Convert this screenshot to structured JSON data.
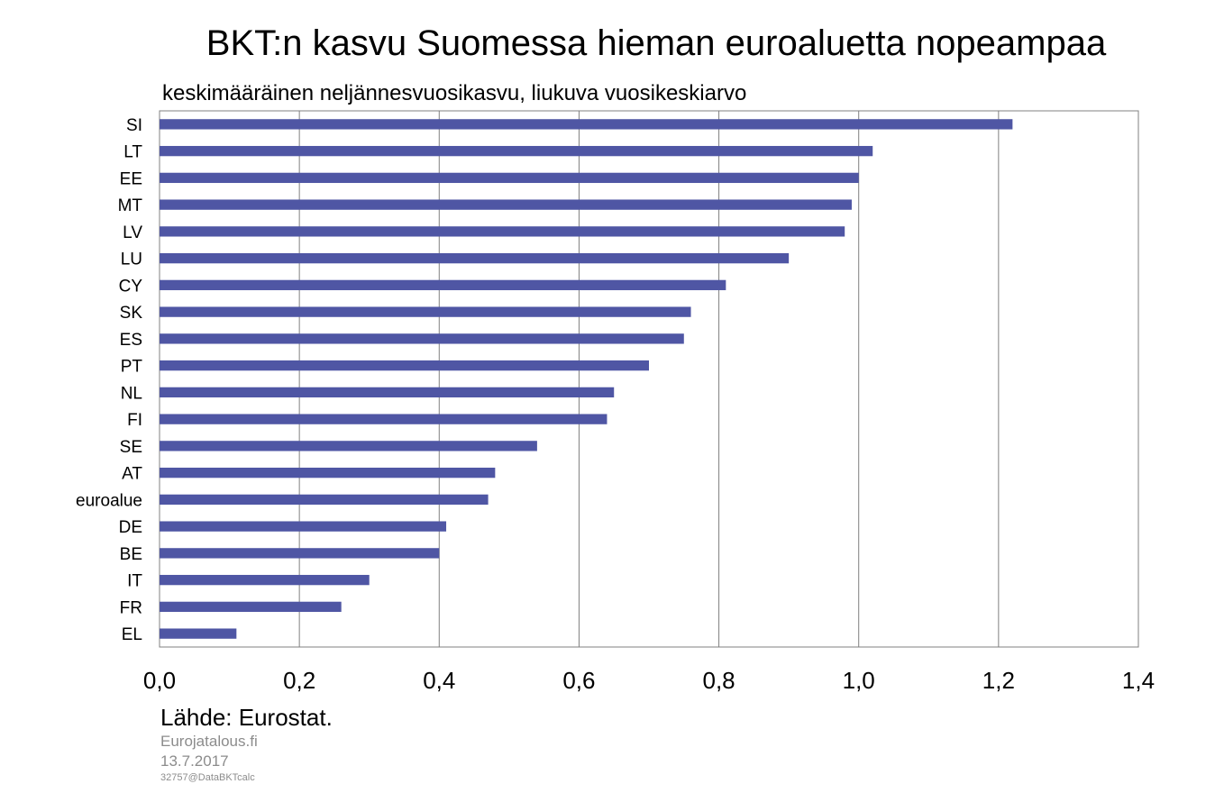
{
  "chart_data": {
    "type": "bar",
    "orientation": "horizontal",
    "title": "BKT:n kasvu Suomessa hieman euroaluetta nopeampaa",
    "subtitle": "keskimääräinen neljännesvuosikasvu,  liukuva vuosikeskiarvo",
    "categories": [
      "SI",
      "LT",
      "EE",
      "MT",
      "LV",
      "LU",
      "CY",
      "SK",
      "ES",
      "PT",
      "NL",
      "FI",
      "SE",
      "AT",
      "euroalue",
      "DE",
      "BE",
      "IT",
      "FR",
      "EL"
    ],
    "values": [
      1.22,
      1.02,
      1.0,
      0.99,
      0.98,
      0.9,
      0.81,
      0.76,
      0.75,
      0.7,
      0.65,
      0.64,
      0.54,
      0.48,
      0.47,
      0.41,
      0.4,
      0.3,
      0.26,
      0.11
    ],
    "xlim": [
      0,
      1.4
    ],
    "xticks": [
      "0,0",
      "0,2",
      "0,4",
      "0,6",
      "0,8",
      "1,0",
      "1,2",
      "1,4"
    ],
    "grid": "vertical",
    "bar_color": "#4f56a4",
    "xlabel": "",
    "ylabel": ""
  },
  "footer": {
    "source": "Lähde: Eurostat.",
    "publisher": "Eurojatalous.fi",
    "date": "13.7.2017",
    "code": "32757@DataBKTcalc"
  }
}
